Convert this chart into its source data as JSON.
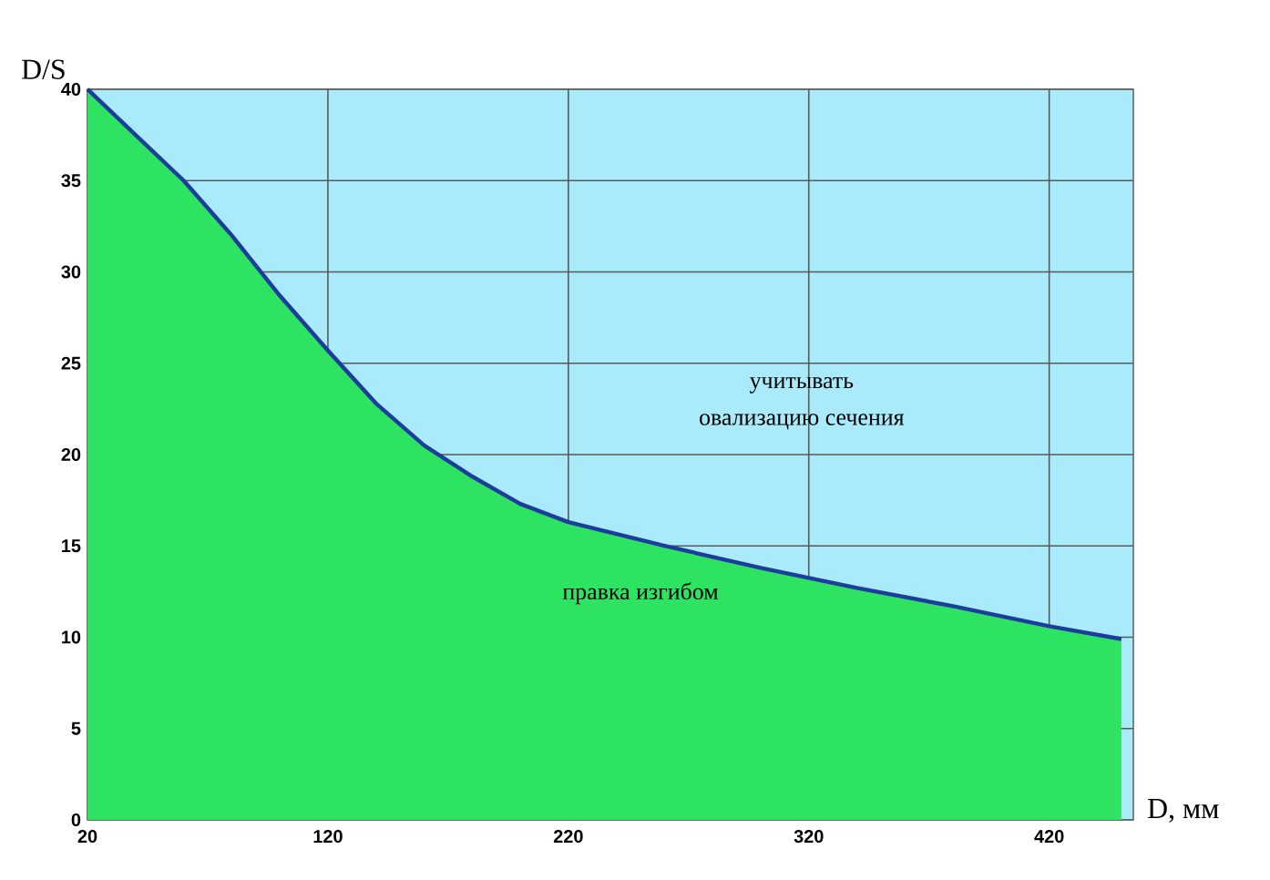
{
  "chart_data": {
    "type": "area",
    "xlabel": "D, мм",
    "ylabel": "D/S",
    "x": [
      20,
      40,
      60,
      80,
      100,
      120,
      140,
      160,
      180,
      200,
      220,
      260,
      300,
      340,
      380,
      420,
      450
    ],
    "series": [
      {
        "color": "#2ee361",
        "values": [
          40,
          37.5,
          35,
          32,
          28.7,
          25.7,
          22.8,
          20.5,
          18.8,
          17.3,
          16.3,
          15,
          13.8,
          12.7,
          11.7,
          10.6,
          9.9
        ]
      },
      {
        "type": "line",
        "color": "#1c3c9e",
        "values": [
          40,
          37.5,
          35,
          32,
          28.7,
          25.7,
          22.8,
          20.5,
          18.8,
          17.3,
          16.3,
          15,
          13.8,
          12.7,
          11.7,
          10.6,
          9.9
        ]
      }
    ],
    "xlim": [
      20,
      455
    ],
    "ylim": [
      0,
      40
    ],
    "xticks": [
      20,
      120,
      220,
      320,
      420
    ],
    "yticks": [
      0,
      5,
      10,
      15,
      20,
      25,
      30,
      35,
      40
    ],
    "grid": true,
    "annotations": [
      "учитывать",
      "овализацию сечения",
      "правка изгибом"
    ]
  }
}
